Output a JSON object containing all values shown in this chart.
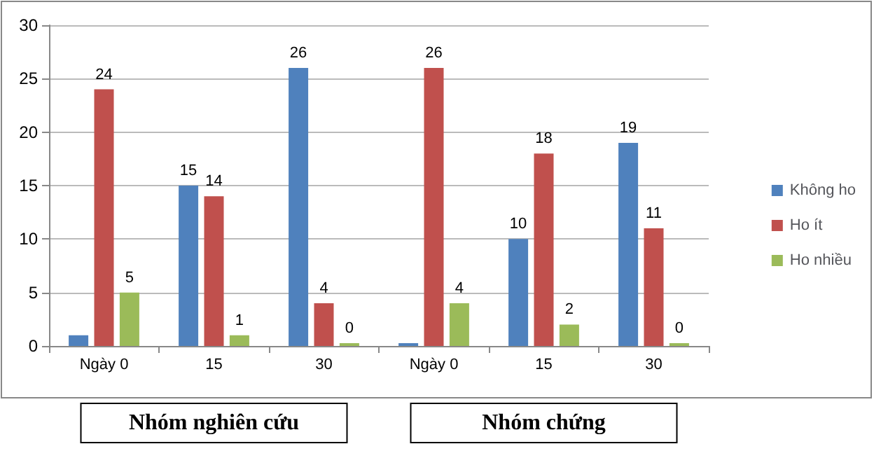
{
  "chart_data": {
    "type": "bar",
    "categories": [
      "Ngày 0",
      "15",
      "30",
      "Ngày 0",
      "15",
      "30"
    ],
    "series": [
      {
        "name": "Không ho",
        "color": "#4f81bd",
        "values": [
          1,
          15,
          26,
          0,
          10,
          19
        ],
        "value_labels": [
          null,
          "15",
          "26",
          null,
          "10",
          "19"
        ]
      },
      {
        "name": "Ho ít",
        "color": "#c0504d",
        "values": [
          24,
          14,
          4,
          26,
          18,
          11
        ],
        "value_labels": [
          "24",
          "14",
          "4",
          "26",
          "18",
          "11"
        ]
      },
      {
        "name": "Ho nhiều",
        "color": "#9bbb59",
        "values": [
          5,
          1,
          0,
          4,
          2,
          0
        ],
        "value_labels": [
          "5",
          "1",
          "0",
          "4",
          "2",
          "0"
        ]
      }
    ],
    "ylim": [
      0,
      30
    ],
    "yticks": [
      0,
      5,
      10,
      15,
      20,
      25,
      30
    ],
    "grid": "y",
    "legend": "right",
    "annotations": [
      "Nhóm nghiên cứu",
      "Nhóm chứng"
    ]
  }
}
